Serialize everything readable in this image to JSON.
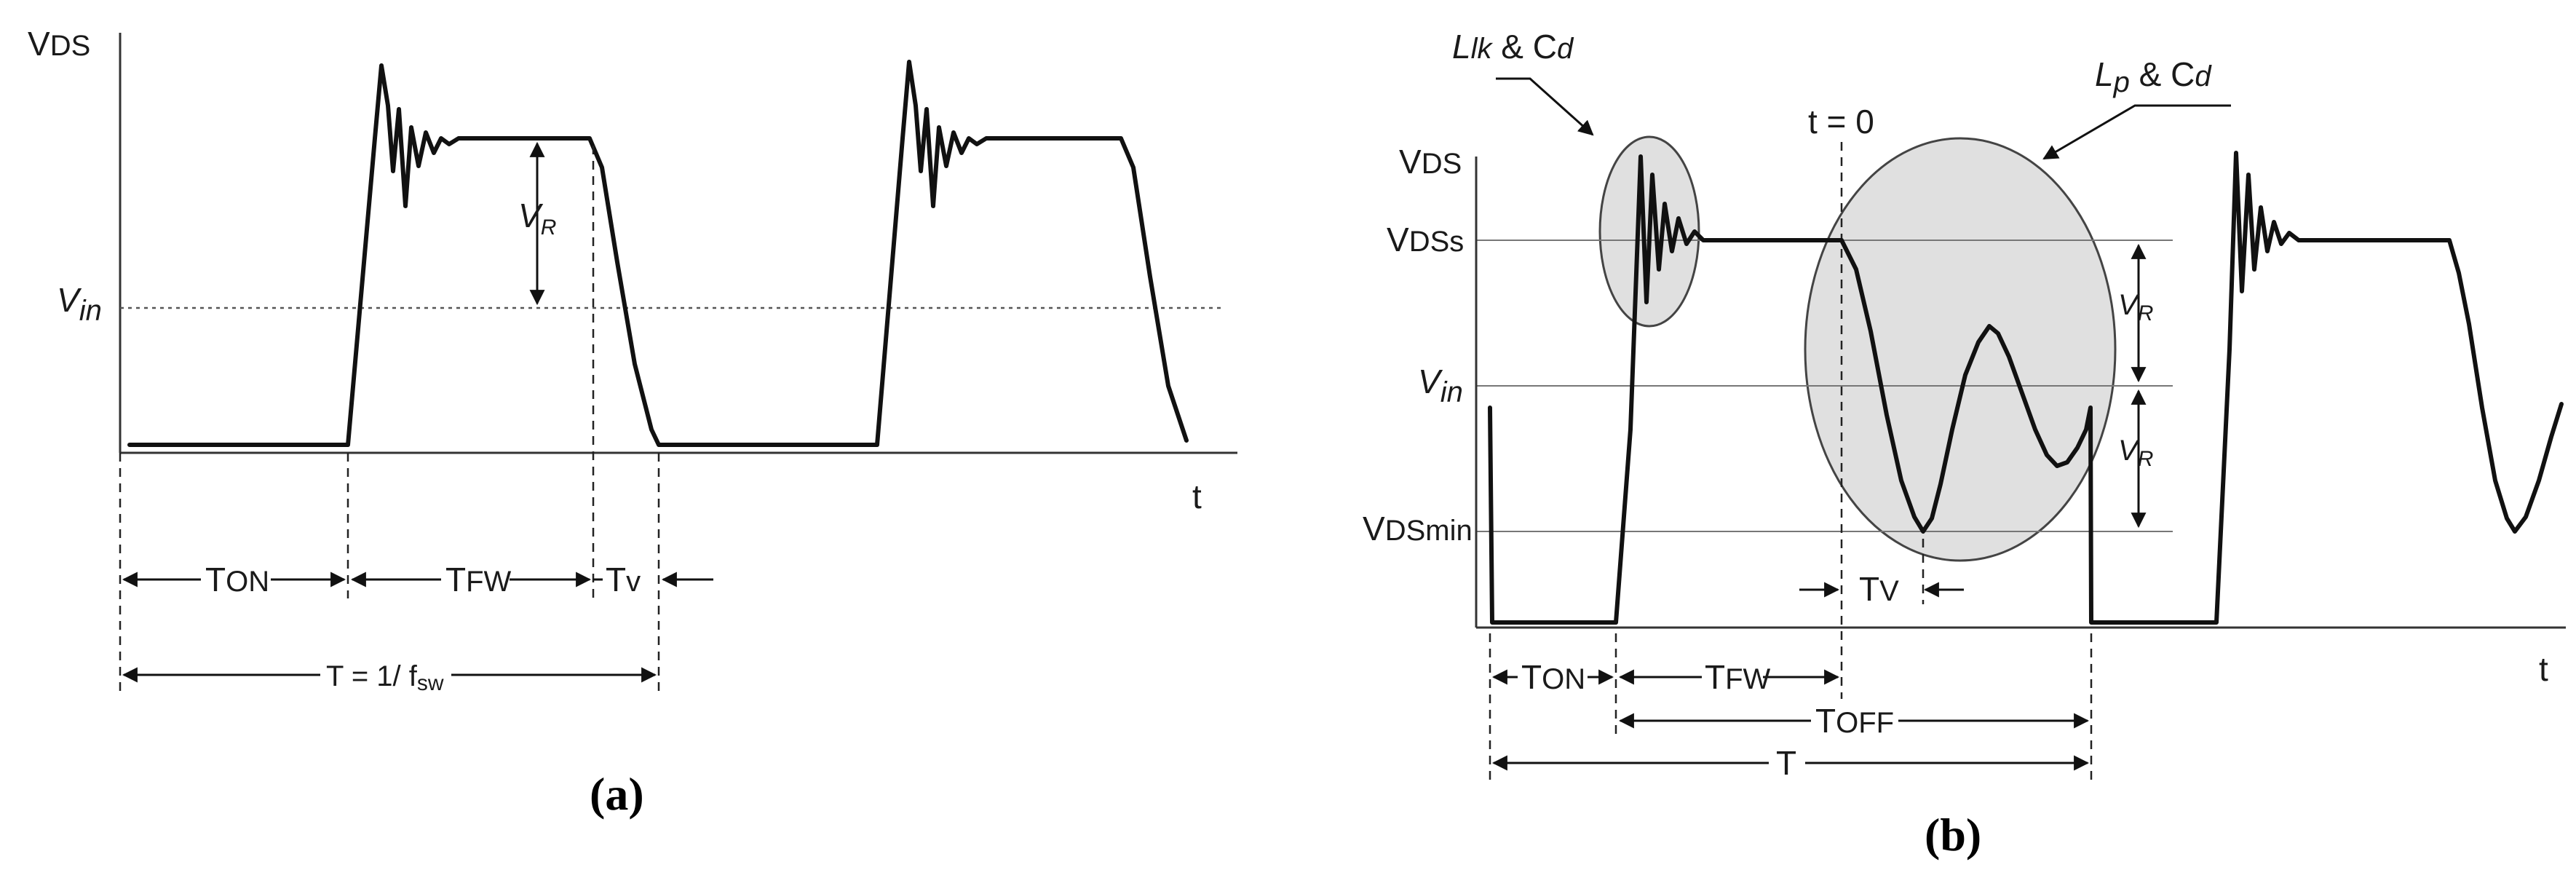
{
  "panel_a": {
    "caption": "(a)",
    "y_axis_label": "V",
    "y_axis_label_sub": "DS",
    "x_axis_label": "t",
    "vin_label": "V",
    "vin_label_sub": "in",
    "vr_label": "V",
    "vr_label_sub": "R",
    "ton_label": "T",
    "ton_label_sub": "ON",
    "tfw_label": "T",
    "tfw_label_sub": "FW",
    "tv_label": "T",
    "tv_label_sub": "v",
    "period_label": "T = 1/ f",
    "period_label_sub": "sw"
  },
  "panel_b": {
    "caption": "(b)",
    "vds_label": "V",
    "vds_label_sub": "DS",
    "vdss_label": "V",
    "vdss_label_sub": "DSs",
    "vin_label": "V",
    "vin_label_sub": "in",
    "vdsmin_label": "V",
    "vdsmin_label_sub": "DSmin",
    "x_axis_label": "t",
    "t0_label": "t = 0",
    "llk_label_l": "L",
    "llk_label_l_sub": "lk",
    "llk_label_rest": " & C",
    "llk_label_rest_sub": "d",
    "lp_label_l": "L",
    "lp_label_l_sub": "p",
    "lp_label_rest": " & C",
    "lp_label_rest_sub": "d",
    "vr_label": "V",
    "vr_label_sub": "R",
    "tv_label": "T",
    "tv_label_sub": "V",
    "ton_label": "T",
    "ton_label_sub": "ON",
    "tfw_label": "T",
    "tfw_label_sub": "FW",
    "toff_label": "T",
    "toff_label_sub": "OFF",
    "t_label": "T"
  }
}
